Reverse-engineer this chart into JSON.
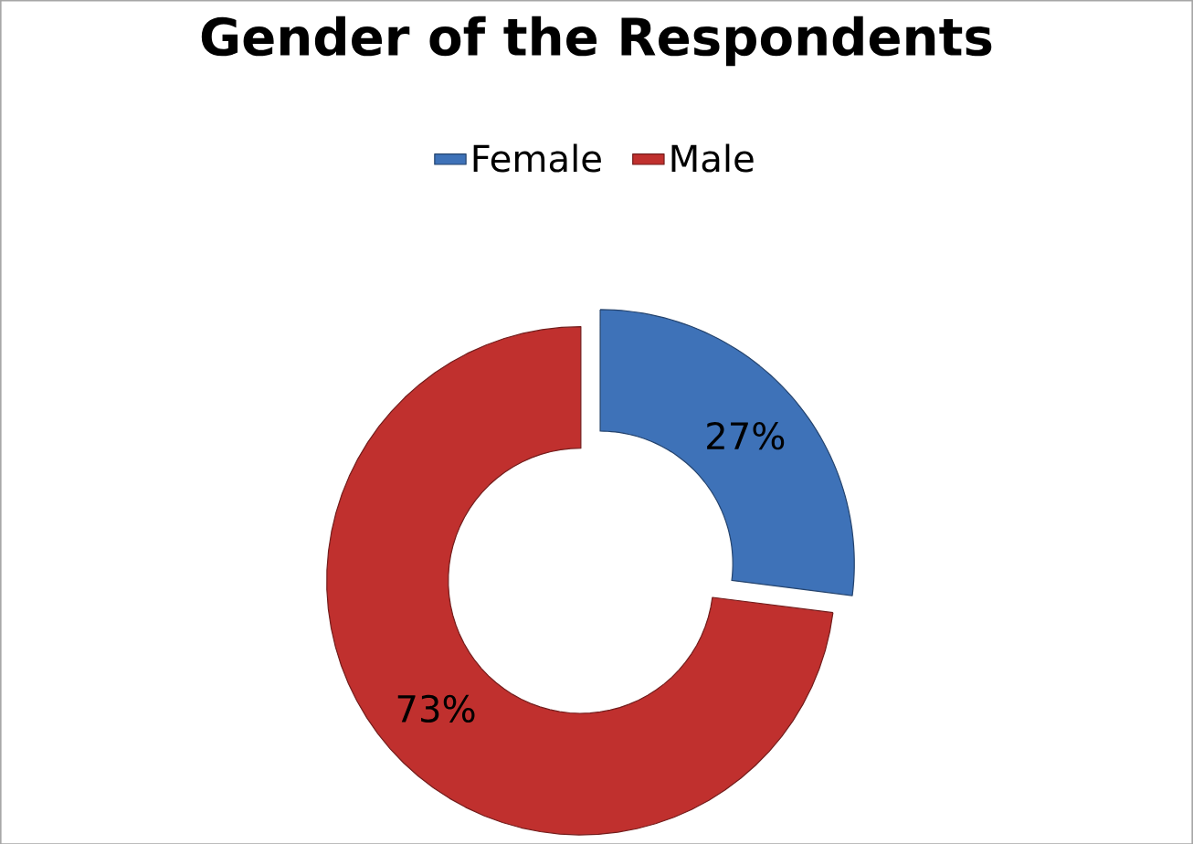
{
  "chart_data": {
    "type": "donut",
    "title": "Gender of the Respondents",
    "categories": [
      "Female",
      "Male"
    ],
    "values": [
      27,
      73
    ],
    "colors": [
      "#3e72b8",
      "#c0302e"
    ],
    "value_labels": [
      "27%",
      "73%"
    ],
    "legend": "top"
  }
}
